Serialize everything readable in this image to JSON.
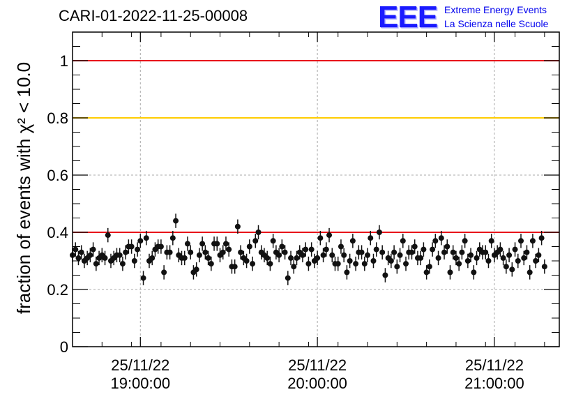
{
  "header": {
    "run_title": "CARI-01-2022-11-25-00008",
    "logo_mark": "EEE",
    "logo_line1": "Extreme Energy Events",
    "logo_line2": "La Scienza nelle Scuole"
  },
  "chart_data": {
    "type": "scatter",
    "title": "CARI-01-2022-11-25-00008",
    "ylabel": "fraction of events with χ² < 10.0",
    "xlabel": "",
    "xlim": [
      "18:37:00",
      "21:22:00"
    ],
    "ylim": [
      0,
      1.1
    ],
    "yticks": [
      0,
      0.2,
      0.4,
      0.6,
      0.8,
      1
    ],
    "ytick_labels": [
      "0",
      "0.2",
      "0.4",
      "0.6",
      "0.8",
      "1"
    ],
    "xticks": [
      "19:00:00",
      "20:00:00",
      "21:00:00"
    ],
    "xtick_labels": [
      {
        "date": "25/11/22",
        "time": "19:00:00"
      },
      {
        "date": "25/11/22",
        "time": "20:00:00"
      },
      {
        "date": "25/11/22",
        "time": "21:00:00"
      }
    ],
    "grid": true,
    "reference_lines": [
      {
        "y": 1.0,
        "color": "#e8141a"
      },
      {
        "y": 0.8,
        "color": "#ffcc00"
      },
      {
        "y": 0.4,
        "color": "#e8141a"
      }
    ],
    "series": [
      {
        "marker_color": "#111111",
        "error": 0.025,
        "start_time": "18:37:00",
        "bin_minutes": 1,
        "values": [
          0.32,
          0.34,
          0.31,
          0.33,
          0.3,
          0.31,
          0.32,
          0.34,
          0.29,
          0.31,
          0.32,
          0.31,
          0.39,
          0.3,
          0.31,
          0.32,
          0.32,
          0.29,
          0.33,
          0.35,
          0.35,
          0.3,
          0.34,
          0.37,
          0.24,
          0.38,
          0.3,
          0.31,
          0.34,
          0.35,
          0.35,
          0.26,
          0.33,
          0.33,
          0.38,
          0.44,
          0.32,
          0.31,
          0.31,
          0.36,
          0.33,
          0.26,
          0.27,
          0.32,
          0.36,
          0.33,
          0.31,
          0.29,
          0.36,
          0.36,
          0.32,
          0.33,
          0.36,
          0.34,
          0.28,
          0.28,
          0.42,
          0.33,
          0.31,
          0.3,
          0.35,
          0.29,
          0.37,
          0.4,
          0.33,
          0.32,
          0.31,
          0.29,
          0.37,
          0.33,
          0.32,
          0.35,
          0.33,
          0.24,
          0.31,
          0.28,
          0.31,
          0.33,
          0.32,
          0.34,
          0.29,
          0.34,
          0.3,
          0.31,
          0.38,
          0.32,
          0.34,
          0.39,
          0.32,
          0.29,
          0.29,
          0.35,
          0.32,
          0.26,
          0.3,
          0.37,
          0.29,
          0.33,
          0.33,
          0.29,
          0.32,
          0.38,
          0.3,
          0.34,
          0.4,
          0.33,
          0.25,
          0.31,
          0.3,
          0.33,
          0.28,
          0.32,
          0.37,
          0.29,
          0.33,
          0.33,
          0.35,
          0.31,
          0.31,
          0.34,
          0.26,
          0.28,
          0.34,
          0.37,
          0.31,
          0.38,
          0.33,
          0.35,
          0.26,
          0.33,
          0.31,
          0.29,
          0.33,
          0.37,
          0.3,
          0.32,
          0.26,
          0.31,
          0.34,
          0.33,
          0.33,
          0.3,
          0.37,
          0.32,
          0.33,
          0.34,
          0.31,
          0.28,
          0.32,
          0.27,
          0.34,
          0.3,
          0.37,
          0.31,
          0.33,
          0.26,
          0.37,
          0.3,
          0.32,
          0.38,
          0.28
        ]
      }
    ]
  }
}
